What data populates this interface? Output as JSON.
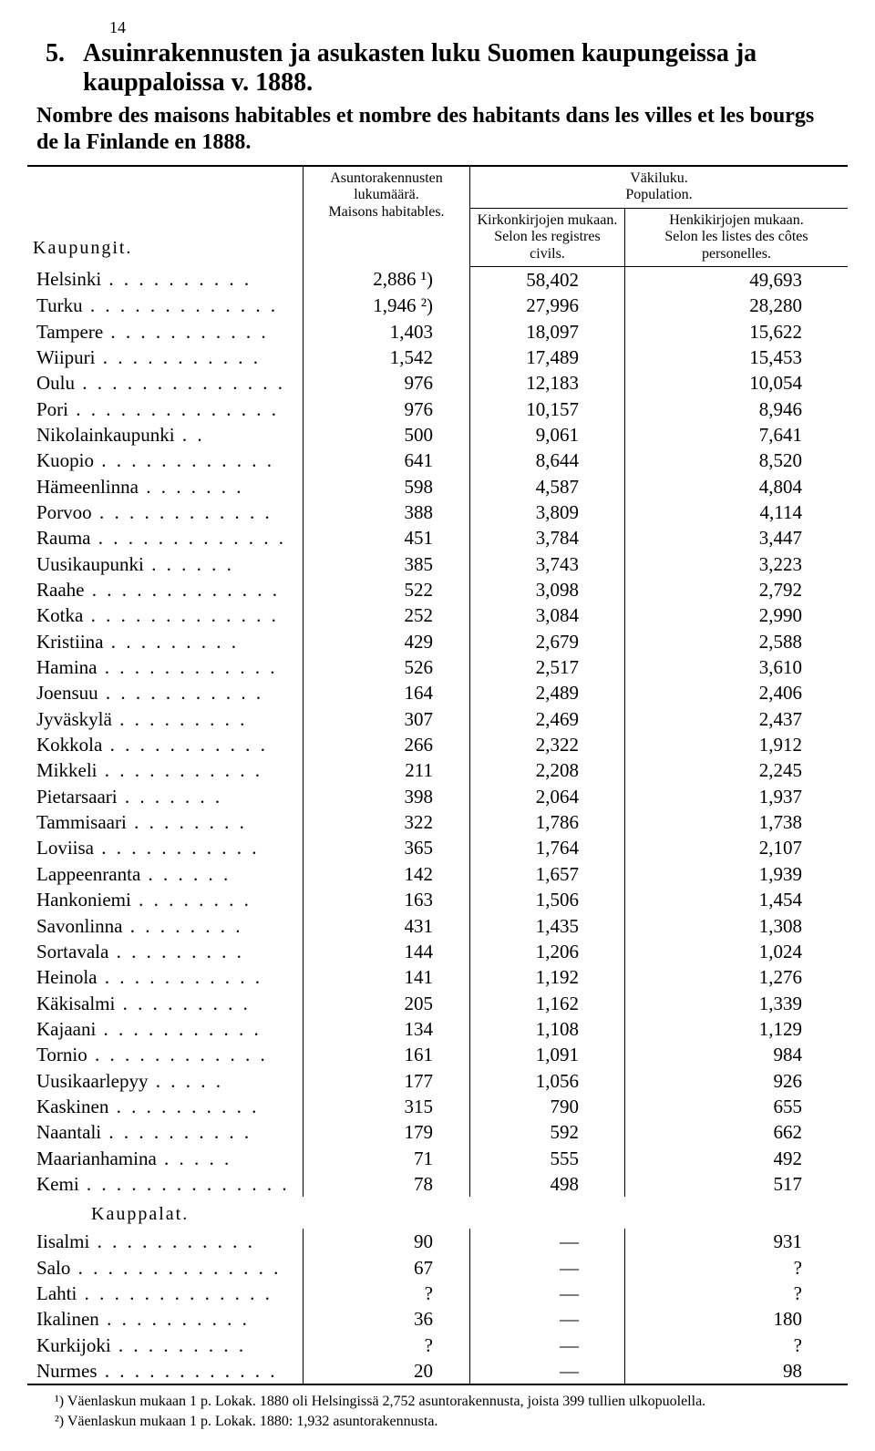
{
  "page_number": "14",
  "title_num": "5.",
  "title_main": "Asuinrakennusten ja asukasten luku Suomen kaupungeissa ja kauppaloissa v. 1888.",
  "subtitle": "Nombre des maisons habitables et nombre des habitants dans les villes et les bourgs de la Finlande en 1888.",
  "headers": {
    "kaupungit": "Kaupungit.",
    "houses": "Asuntorakennusten lukumäärä.",
    "houses_fr": "Maisons habitables.",
    "pop": "Väkiluku.",
    "pop_fr": "Population.",
    "civil": "Kirkonkirjojen mukaan.",
    "civil_fr": "Selon les registres civils.",
    "personal": "Henkikirjojen mukaan.",
    "personal_fr": "Selon les listes des côtes personelles."
  },
  "section2": "Kauppalat.",
  "cities": [
    {
      "name": "Helsinki",
      "houses": "2,886 ¹)",
      "civil": "58,402",
      "personal": "49,693"
    },
    {
      "name": "Turku",
      "houses": "1,946 ²)",
      "civil": "27,996",
      "personal": "28,280"
    },
    {
      "name": "Tampere",
      "houses": "1,403",
      "civil": "18,097",
      "personal": "15,622"
    },
    {
      "name": "Wiipuri",
      "houses": "1,542",
      "civil": "17,489",
      "personal": "15,453"
    },
    {
      "name": "Oulu",
      "houses": "976",
      "civil": "12,183",
      "personal": "10,054"
    },
    {
      "name": "Pori",
      "houses": "976",
      "civil": "10,157",
      "personal": "8,946"
    },
    {
      "name": "Nikolainkaupunki",
      "houses": "500",
      "civil": "9,061",
      "personal": "7,641"
    },
    {
      "name": "Kuopio",
      "houses": "641",
      "civil": "8,644",
      "personal": "8,520"
    },
    {
      "name": "Hämeenlinna",
      "houses": "598",
      "civil": "4,587",
      "personal": "4,804"
    },
    {
      "name": "Porvoo",
      "houses": "388",
      "civil": "3,809",
      "personal": "4,114"
    },
    {
      "name": "Rauma",
      "houses": "451",
      "civil": "3,784",
      "personal": "3,447"
    },
    {
      "name": "Uusikaupunki",
      "houses": "385",
      "civil": "3,743",
      "personal": "3,223"
    },
    {
      "name": "Raahe",
      "houses": "522",
      "civil": "3,098",
      "personal": "2,792"
    },
    {
      "name": "Kotka",
      "houses": "252",
      "civil": "3,084",
      "personal": "2,990"
    },
    {
      "name": "Kristiina",
      "houses": "429",
      "civil": "2,679",
      "personal": "2,588"
    },
    {
      "name": "Hamina",
      "houses": "526",
      "civil": "2,517",
      "personal": "3,610"
    },
    {
      "name": "Joensuu",
      "houses": "164",
      "civil": "2,489",
      "personal": "2,406"
    },
    {
      "name": "Jyväskylä",
      "houses": "307",
      "civil": "2,469",
      "personal": "2,437"
    },
    {
      "name": "Kokkola",
      "houses": "266",
      "civil": "2,322",
      "personal": "1,912"
    },
    {
      "name": "Mikkeli",
      "houses": "211",
      "civil": "2,208",
      "personal": "2,245"
    },
    {
      "name": "Pietarsaari",
      "houses": "398",
      "civil": "2,064",
      "personal": "1,937"
    },
    {
      "name": "Tammisaari",
      "houses": "322",
      "civil": "1,786",
      "personal": "1,738"
    },
    {
      "name": "Loviisa",
      "houses": "365",
      "civil": "1,764",
      "personal": "2,107"
    },
    {
      "name": "Lappeenranta",
      "houses": "142",
      "civil": "1,657",
      "personal": "1,939"
    },
    {
      "name": "Hankoniemi",
      "houses": "163",
      "civil": "1,506",
      "personal": "1,454"
    },
    {
      "name": "Savonlinna",
      "houses": "431",
      "civil": "1,435",
      "personal": "1,308"
    },
    {
      "name": "Sortavala",
      "houses": "144",
      "civil": "1,206",
      "personal": "1,024"
    },
    {
      "name": "Heinola",
      "houses": "141",
      "civil": "1,192",
      "personal": "1,276"
    },
    {
      "name": "Käkisalmi",
      "houses": "205",
      "civil": "1,162",
      "personal": "1,339"
    },
    {
      "name": "Kajaani",
      "houses": "134",
      "civil": "1,108",
      "personal": "1,129"
    },
    {
      "name": "Tornio",
      "houses": "161",
      "civil": "1,091",
      "personal": "984"
    },
    {
      "name": "Uusikaarlepyy",
      "houses": "177",
      "civil": "1,056",
      "personal": "926"
    },
    {
      "name": "Kaskinen",
      "houses": "315",
      "civil": "790",
      "personal": "655"
    },
    {
      "name": "Naantali",
      "houses": "179",
      "civil": "592",
      "personal": "662"
    },
    {
      "name": "Maarianhamina",
      "houses": "71",
      "civil": "555",
      "personal": "492"
    },
    {
      "name": "Kemi",
      "houses": "78",
      "civil": "498",
      "personal": "517"
    }
  ],
  "towns": [
    {
      "name": "Iisalmi",
      "houses": "90",
      "civil": "—",
      "personal": "931"
    },
    {
      "name": "Salo",
      "houses": "67",
      "civil": "—",
      "personal": "?"
    },
    {
      "name": "Lahti",
      "houses": "?",
      "civil": "—",
      "personal": "?"
    },
    {
      "name": "Ikalinen",
      "houses": "36",
      "civil": "—",
      "personal": "180"
    },
    {
      "name": "Kurkijoki",
      "houses": "?",
      "civil": "—",
      "personal": "?"
    },
    {
      "name": "Nurmes",
      "houses": "20",
      "civil": "—",
      "personal": "98"
    }
  ],
  "footnotes": {
    "f1": "¹) Väenlaskun mukaan 1 p. Lokak. 1880 oli Helsingissä 2,752 asuntorakennusta, joista 399 tullien ulkopuolella.",
    "f2": "²) Väenlaskun mukaan 1 p. Lokak. 1880: 1,932 asuntorakennusta."
  }
}
